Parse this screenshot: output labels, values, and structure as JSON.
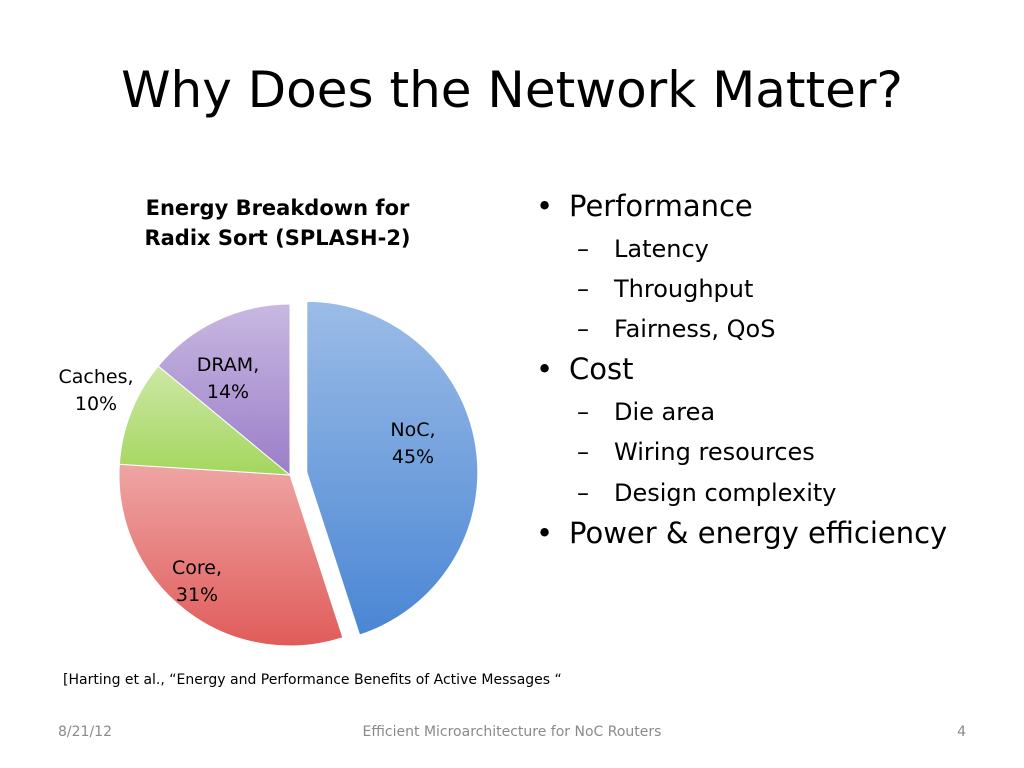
{
  "slide": {
    "title": "Why Does the Network Matter?",
    "citation": "[Harting et al., “Energy and Performance Benefits of Active Messages “"
  },
  "chart_data": {
    "type": "pie",
    "title_lines": [
      "Energy Breakdown for",
      "Radix Sort (SPLASH-2)"
    ],
    "slices": [
      {
        "label": "NoC",
        "value": 45,
        "label_lines": [
          "NoC,",
          "45%"
        ],
        "color": "#4a86d4",
        "exploded": true
      },
      {
        "label": "Core",
        "value": 31,
        "label_lines": [
          "Core,",
          "31%"
        ],
        "color": "#e05c5a",
        "exploded": false
      },
      {
        "label": "Caches",
        "value": 10,
        "label_lines": [
          "Caches,",
          "10%"
        ],
        "color": "#a4d65e",
        "exploded": false
      },
      {
        "label": "DRAM",
        "value": 14,
        "label_lines": [
          "DRAM,",
          "14%"
        ],
        "color": "#9b7ec9",
        "exploded": false
      }
    ],
    "legend": "none"
  },
  "bullets": [
    {
      "level": 1,
      "text": "Performance"
    },
    {
      "level": 2,
      "text": "Latency"
    },
    {
      "level": 2,
      "text": "Throughput"
    },
    {
      "level": 2,
      "text": "Fairness, QoS"
    },
    {
      "level": 1,
      "text": "Cost"
    },
    {
      "level": 2,
      "text": "Die area"
    },
    {
      "level": 2,
      "text": "Wiring resources"
    },
    {
      "level": 2,
      "text": "Design complexity"
    },
    {
      "level": 1,
      "text": "Power & energy efficiency"
    }
  ],
  "footer": {
    "date": "8/21/12",
    "center": "Efficient Microarchitecture for NoC Routers",
    "page": "4"
  }
}
